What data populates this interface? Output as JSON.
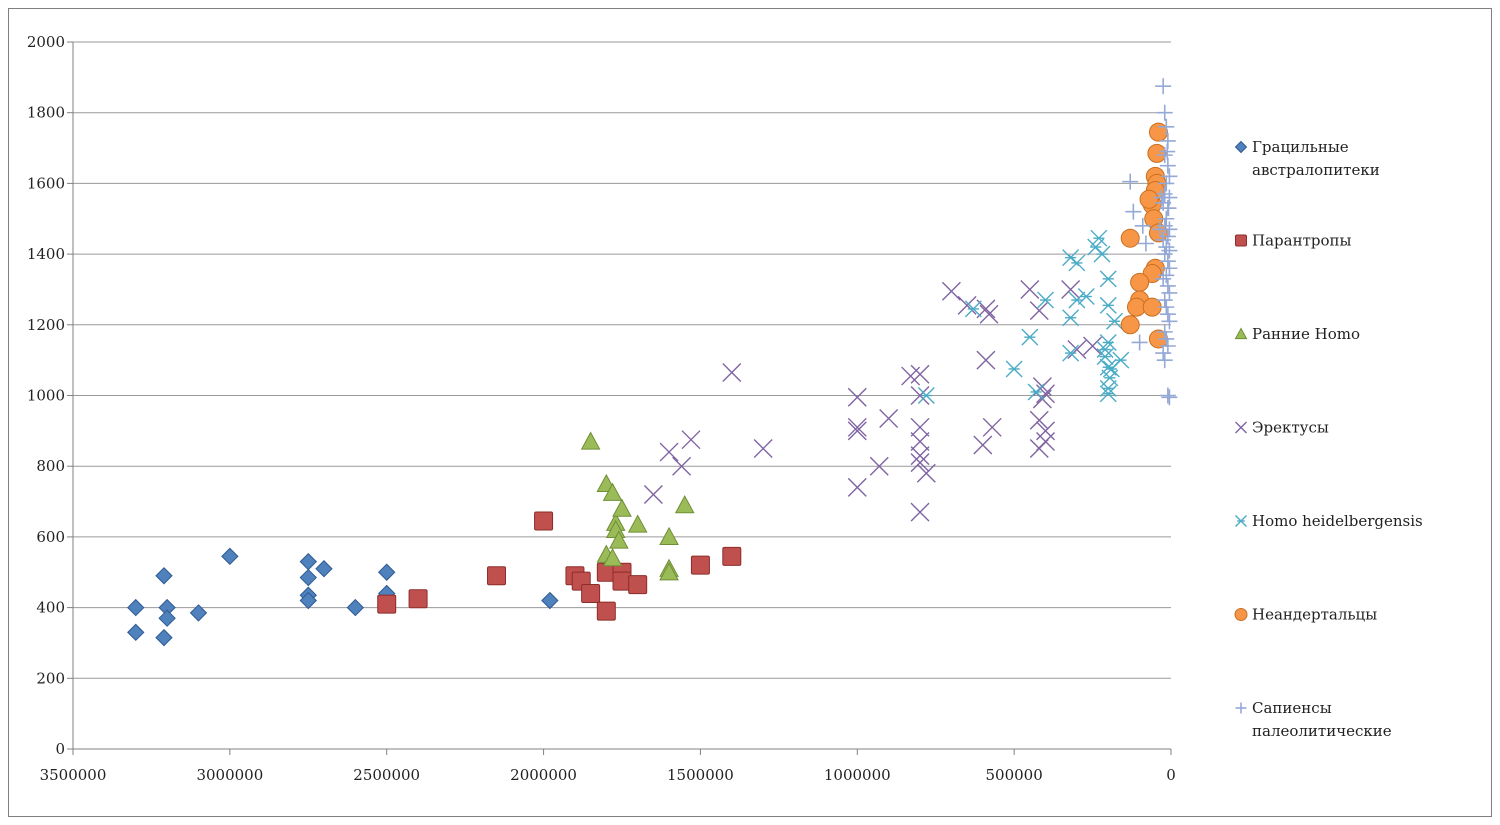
{
  "chart_data": {
    "type": "scatter",
    "title": "",
    "xlabel": "",
    "ylabel": "",
    "xlim": [
      3500000,
      0
    ],
    "ylim": [
      0,
      2000
    ],
    "x_ticks": [
      3500000,
      3000000,
      2500000,
      2000000,
      1500000,
      1000000,
      500000,
      0
    ],
    "y_ticks": [
      0,
      200,
      400,
      600,
      800,
      1000,
      1200,
      1400,
      1600,
      1800,
      2000
    ],
    "grid": true,
    "legend": "right",
    "series": [
      {
        "name": "Грацильные австралопитеки",
        "legend_lines": [
          "Грацильные",
          "австралопитеки"
        ],
        "marker": "diamond",
        "color": "#4f81bd",
        "stroke": "#2f5a93",
        "points": [
          [
            3300000,
            400
          ],
          [
            3300000,
            330
          ],
          [
            3210000,
            490
          ],
          [
            3210000,
            315
          ],
          [
            3200000,
            400
          ],
          [
            3200000,
            370
          ],
          [
            3100000,
            385
          ],
          [
            3000000,
            545
          ],
          [
            2750000,
            530
          ],
          [
            2750000,
            485
          ],
          [
            2750000,
            435
          ],
          [
            2750000,
            420
          ],
          [
            2700000,
            510
          ],
          [
            2600000,
            400
          ],
          [
            2500000,
            500
          ],
          [
            2500000,
            440
          ],
          [
            1980000,
            420
          ]
        ]
      },
      {
        "name": "Парантропы",
        "legend_lines": [
          "Парантропы"
        ],
        "marker": "square",
        "color": "#c0504d",
        "stroke": "#8c2d2a",
        "points": [
          [
            2500000,
            410
          ],
          [
            2400000,
            425
          ],
          [
            2150000,
            490
          ],
          [
            2000000,
            645
          ],
          [
            1900000,
            490
          ],
          [
            1880000,
            475
          ],
          [
            1850000,
            440
          ],
          [
            1800000,
            500
          ],
          [
            1800000,
            390
          ],
          [
            1750000,
            500
          ],
          [
            1750000,
            475
          ],
          [
            1700000,
            465
          ],
          [
            1500000,
            520
          ],
          [
            1400000,
            545
          ]
        ]
      },
      {
        "name": "Ранние Homo",
        "legend_lines": [
          "Ранние Homo"
        ],
        "marker": "triangle",
        "color": "#9bbb59",
        "stroke": "#6f8f36",
        "points": [
          [
            1850000,
            870
          ],
          [
            1800000,
            750
          ],
          [
            1780000,
            725
          ],
          [
            1770000,
            640
          ],
          [
            1770000,
            620
          ],
          [
            1760000,
            590
          ],
          [
            1750000,
            680
          ],
          [
            1700000,
            635
          ],
          [
            1600000,
            600
          ],
          [
            1600000,
            510
          ],
          [
            1600000,
            500
          ],
          [
            1550000,
            690
          ],
          [
            1800000,
            550
          ],
          [
            1780000,
            540
          ]
        ]
      },
      {
        "name": "Эректусы",
        "legend_lines": [
          "Эректусы"
        ],
        "marker": "x",
        "color": "#8064a2",
        "stroke": "#8064a2",
        "points": [
          [
            1600000,
            840
          ],
          [
            1560000,
            800
          ],
          [
            1530000,
            875
          ],
          [
            1650000,
            720
          ],
          [
            1400000,
            1065
          ],
          [
            1300000,
            850
          ],
          [
            1000000,
            995
          ],
          [
            1000000,
            910
          ],
          [
            1000000,
            900
          ],
          [
            1000000,
            740
          ],
          [
            930000,
            800
          ],
          [
            900000,
            935
          ],
          [
            830000,
            1055
          ],
          [
            800000,
            1060
          ],
          [
            800000,
            1000
          ],
          [
            800000,
            910
          ],
          [
            800000,
            870
          ],
          [
            800000,
            830
          ],
          [
            800000,
            810
          ],
          [
            800000,
            670
          ],
          [
            780000,
            780
          ],
          [
            700000,
            1295
          ],
          [
            650000,
            1255
          ],
          [
            590000,
            1245
          ],
          [
            580000,
            1230
          ],
          [
            590000,
            1100
          ],
          [
            570000,
            910
          ],
          [
            600000,
            860
          ],
          [
            450000,
            1300
          ],
          [
            420000,
            1240
          ],
          [
            410000,
            1025
          ],
          [
            400000,
            1005
          ],
          [
            410000,
            990
          ],
          [
            420000,
            930
          ],
          [
            400000,
            900
          ],
          [
            400000,
            870
          ],
          [
            420000,
            850
          ],
          [
            320000,
            1300
          ],
          [
            300000,
            1130
          ],
          [
            250000,
            1140
          ]
        ]
      },
      {
        "name": "Homo heidelbergensis",
        "legend_lines": [
          "Homo heidelbergensis"
        ],
        "marker": "asterisk",
        "color": "#4bacc6",
        "stroke": "#4bacc6",
        "points": [
          [
            630000,
            1245
          ],
          [
            500000,
            1075
          ],
          [
            450000,
            1165
          ],
          [
            400000,
            1270
          ],
          [
            320000,
            1390
          ],
          [
            300000,
            1375
          ],
          [
            300000,
            1270
          ],
          [
            270000,
            1280
          ],
          [
            240000,
            1420
          ],
          [
            230000,
            1445
          ],
          [
            220000,
            1400
          ],
          [
            200000,
            1330
          ],
          [
            200000,
            1255
          ],
          [
            210000,
            1130
          ],
          [
            210000,
            1110
          ],
          [
            200000,
            1080
          ],
          [
            195000,
            1050
          ],
          [
            200000,
            1020
          ],
          [
            200000,
            1005
          ],
          [
            190000,
            1075
          ],
          [
            180000,
            1210
          ],
          [
            160000,
            1100
          ],
          [
            320000,
            1220
          ],
          [
            320000,
            1120
          ],
          [
            780000,
            1000
          ],
          [
            430000,
            1010
          ],
          [
            200000,
            1150
          ]
        ]
      },
      {
        "name": "Неандертальцы",
        "legend_lines": [
          "Неандертальцы"
        ],
        "marker": "circle",
        "color": "#f79646",
        "stroke": "#c96f20",
        "points": [
          [
            40000,
            1745
          ],
          [
            45000,
            1685
          ],
          [
            50000,
            1620
          ],
          [
            45000,
            1600
          ],
          [
            50000,
            1580
          ],
          [
            60000,
            1540
          ],
          [
            70000,
            1555
          ],
          [
            55000,
            1500
          ],
          [
            40000,
            1460
          ],
          [
            130000,
            1445
          ],
          [
            50000,
            1360
          ],
          [
            60000,
            1345
          ],
          [
            100000,
            1320
          ],
          [
            100000,
            1270
          ],
          [
            110000,
            1250
          ],
          [
            60000,
            1250
          ],
          [
            130000,
            1200
          ],
          [
            40000,
            1160
          ]
        ]
      },
      {
        "name": "Сапиенсы палеолитические",
        "legend_lines": [
          "Сапиенсы",
          "палеолитические"
        ],
        "marker": "plus",
        "color": "#95a9d6",
        "stroke": "#95a9d6",
        "points": [
          [
            25000,
            1875
          ],
          [
            20000,
            1800
          ],
          [
            15000,
            1760
          ],
          [
            10000,
            1720
          ],
          [
            20000,
            1680
          ],
          [
            10000,
            1650
          ],
          [
            5000,
            1620
          ],
          [
            15000,
            1600
          ],
          [
            130000,
            1605
          ],
          [
            20000,
            1570
          ],
          [
            5000,
            1560
          ],
          [
            25000,
            1545
          ],
          [
            10000,
            1530
          ],
          [
            120000,
            1520
          ],
          [
            15000,
            1500
          ],
          [
            20000,
            1480
          ],
          [
            5000,
            1470
          ],
          [
            10000,
            1450
          ],
          [
            25000,
            1440
          ],
          [
            15000,
            1420
          ],
          [
            5000,
            1410
          ],
          [
            20000,
            1400
          ],
          [
            10000,
            1380
          ],
          [
            5000,
            1360
          ],
          [
            15000,
            1340
          ],
          [
            25000,
            1330
          ],
          [
            10000,
            1310
          ],
          [
            5000,
            1290
          ],
          [
            20000,
            1270
          ],
          [
            15000,
            1250
          ],
          [
            10000,
            1230
          ],
          [
            5000,
            1210
          ],
          [
            20000,
            1180
          ],
          [
            15000,
            1160
          ],
          [
            10000,
            1140
          ],
          [
            25000,
            1120
          ],
          [
            20000,
            1100
          ],
          [
            10000,
            1000
          ],
          [
            5000,
            995
          ],
          [
            100000,
            1150
          ],
          [
            90000,
            1480
          ],
          [
            80000,
            1430
          ],
          [
            30000,
            1560
          ],
          [
            35000,
            1470
          ],
          [
            12000,
            1690
          ],
          [
            8000,
            1530
          ]
        ]
      }
    ]
  }
}
